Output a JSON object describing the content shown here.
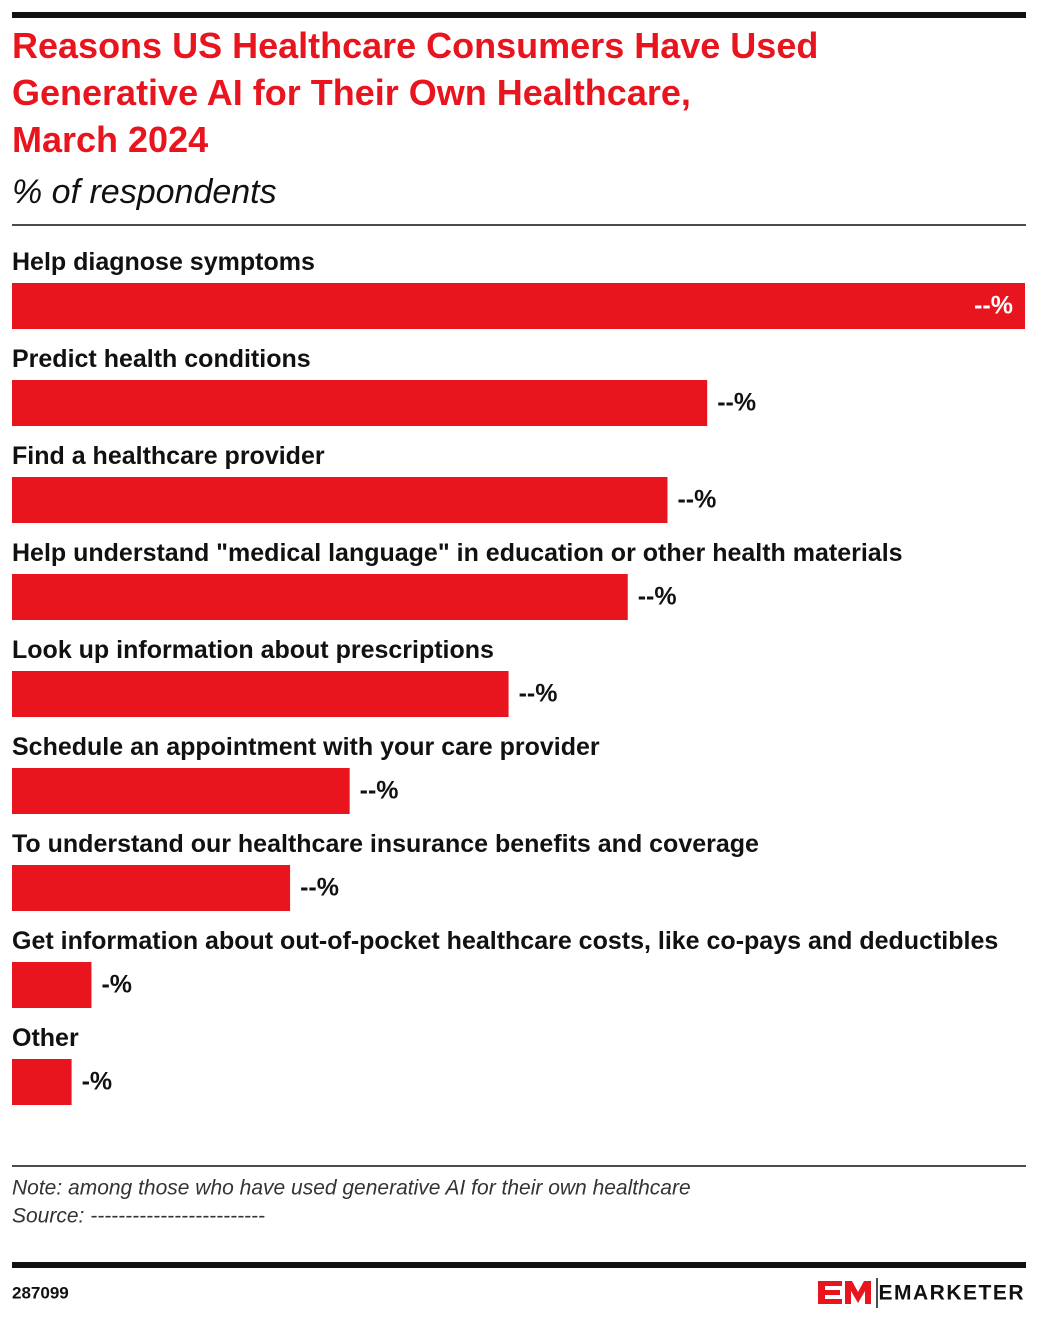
{
  "chart_data": {
    "type": "bar",
    "title": "Reasons US Healthcare Consumers Have Used\nGenerative AI for Their Own Healthcare,\nMarch 2024",
    "subtitle": "% of respondents",
    "categories": [
      "Help diagnose symptoms",
      "Predict health conditions",
      "Find a healthcare provider",
      "Help understand \"medical language\" in education or other health materials",
      "Look up information about prescriptions",
      "Schedule an appointment with your care provider",
      "To understand our healthcare insurance benefits and coverage",
      "Get information about out-of-pocket healthcare costs, like co-pays and deductibles",
      "Other"
    ],
    "values": [
      51,
      35,
      33,
      31,
      25,
      17,
      14,
      4,
      3
    ],
    "value_labels": [
      "--%",
      "--%",
      "--%",
      "--%",
      "--%",
      "--%",
      "--%",
      "-%",
      "-%"
    ],
    "color": "#e8141e",
    "note": "Note: among those who have used generative AI for their own healthcare",
    "source": "Source: -------------------------"
  },
  "footer": {
    "id": "287099",
    "brand": "EMARKETER"
  }
}
